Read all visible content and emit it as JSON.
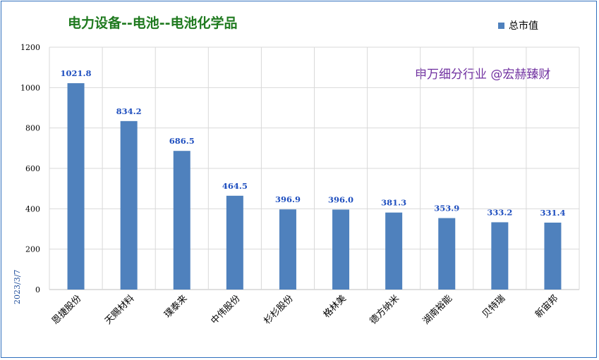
{
  "title": "电力设备--电池--电池化学品",
  "legend_label": "总市值",
  "watermark": "申万细分行业 @宏赫臻财",
  "date_label": "2023/3/7",
  "colors": {
    "bar": "#4f81bd",
    "title": "#1f7a1f",
    "data_label": "#1f4fbf",
    "watermark": "#7030a0"
  },
  "chart_data": {
    "type": "bar",
    "title": "电力设备--电池--电池化学品",
    "categories": [
      "恩捷股份",
      "天赐材料",
      "璞泰来",
      "中伟股份",
      "杉杉股份",
      "格林美",
      "德方纳米",
      "湖南裕能",
      "贝特瑞",
      "新宙邦"
    ],
    "series": [
      {
        "name": "总市值",
        "values": [
          1021.8,
          834.2,
          686.5,
          464.5,
          396.9,
          396.0,
          381.3,
          353.9,
          333.2,
          331.4
        ]
      }
    ],
    "data_labels": [
      "1021.8",
      "834.2",
      "686.5",
      "464.5",
      "396.9",
      "396.0",
      "381.3",
      "353.9",
      "333.2",
      "331.4"
    ],
    "y_ticks": [
      "0",
      "200",
      "400",
      "600",
      "800",
      "1000",
      "1200"
    ],
    "ylim": [
      0,
      1200
    ],
    "grid": true,
    "legend_position": "top-right",
    "xlabel": "",
    "ylabel": ""
  }
}
